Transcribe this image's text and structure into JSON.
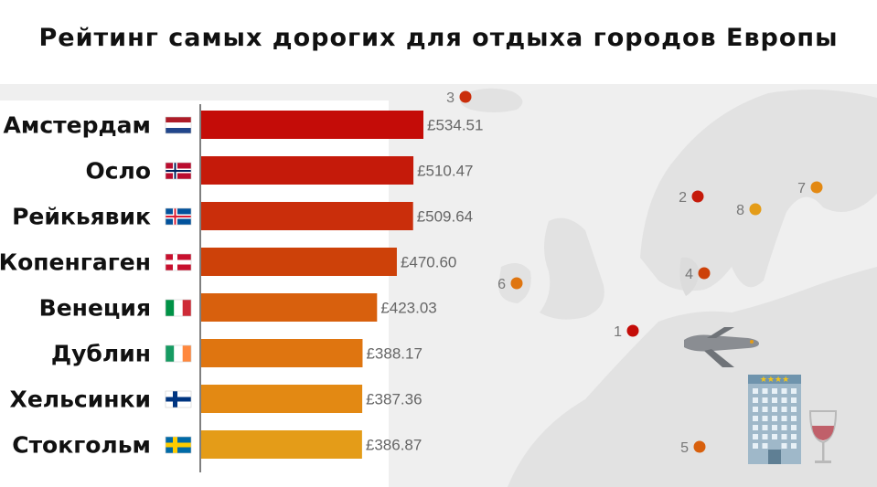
{
  "title": "Рейтинг самых дорогих для отдыха городов Европы",
  "chart_data": {
    "type": "bar",
    "orientation": "horizontal",
    "categories": [
      "Амстердам",
      "Осло",
      "Рейкьявик",
      "Копенгаген",
      "Венеция",
      "Дублин",
      "Хельсинки",
      "Стокгольм"
    ],
    "values": [
      534.51,
      510.47,
      509.64,
      470.6,
      423.03,
      388.17,
      387.36,
      386.87
    ],
    "value_labels": [
      "£534.51",
      "£510.47",
      "£509.64",
      "£470.60",
      "£423.03",
      "£388.17",
      "£387.36",
      "£386.87"
    ],
    "bar_colors": [
      "#c40c08",
      "#c51a0a",
      "#ca2e0b",
      "#cd4109",
      "#d8600d",
      "#df7510",
      "#e38913",
      "#e49c18"
    ],
    "flags": [
      "flag-netherlands",
      "flag-norway",
      "flag-iceland",
      "flag-denmark",
      "flag-italy",
      "flag-ireland",
      "flag-finland",
      "flag-sweden"
    ],
    "map_markers": [
      {
        "rank": "1",
        "city": "Амстердам",
        "color": "#c40c08"
      },
      {
        "rank": "2",
        "city": "Осло",
        "color": "#c51a0a"
      },
      {
        "rank": "3",
        "city": "Рейкьявик",
        "color": "#ca2e0b"
      },
      {
        "rank": "4",
        "city": "Копенгаген",
        "color": "#cd4109"
      },
      {
        "rank": "5",
        "city": "Венеция",
        "color": "#d8600d"
      },
      {
        "rank": "6",
        "city": "Дублин",
        "color": "#df7510"
      },
      {
        "rank": "7",
        "city": "Хельсинки",
        "color": "#e38913"
      },
      {
        "rank": "8",
        "city": "Стокгольм",
        "color": "#e49c18"
      }
    ],
    "title": "Рейтинг самых дорогих для отдыха городов Европы",
    "xlabel": "",
    "ylabel": "",
    "grid": false,
    "legend": "none"
  },
  "icons": [
    "airplane-icon",
    "hotel-icon",
    "wine-glass-icon"
  ]
}
